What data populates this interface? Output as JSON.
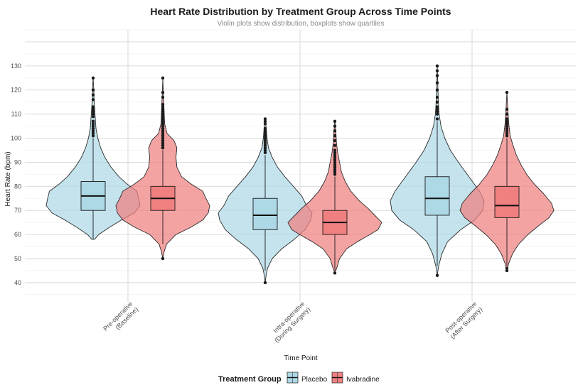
{
  "chart_data": {
    "type": "violin",
    "title": "Heart Rate Distribution by Treatment Group Across Time Points",
    "subtitle": "Violin plots show distribution, boxplots show quartiles",
    "xlabel": "Time Point",
    "ylabel": "Heart Rate (bpm)",
    "ylim": [
      32,
      145
    ],
    "y_ticks": [
      40,
      50,
      60,
      70,
      80,
      90,
      100,
      110,
      120,
      130
    ],
    "categories": [
      [
        "Pre-operative",
        "(Baseline)"
      ],
      [
        "Intra-operative",
        "(During Surgery)"
      ],
      [
        "Post-operative",
        "(After Surgery)"
      ]
    ],
    "legend": {
      "title": "Treatment Group",
      "position": "bottom",
      "entries": [
        {
          "label": "Placebo",
          "color": "#add8e6"
        },
        {
          "label": "Ivabradine",
          "color": "#f08080"
        }
      ]
    },
    "series": [
      {
        "name": "Placebo",
        "color": "#add8e6",
        "groups": [
          {
            "category": "Pre-operative",
            "box": {
              "min": 58,
              "q1": 70,
              "median": 76,
              "q3": 82,
              "max": 100
            },
            "outliers": [
              101,
              102,
              103,
              104,
              105,
              106,
              107,
              109,
              110,
              111,
              112,
              113,
              116,
              118,
              120,
              125
            ],
            "density": [
              [
                58,
                0.03
              ],
              [
                60,
                0.12
              ],
              [
                63,
                0.35
              ],
              [
                66,
                0.6
              ],
              [
                69,
                0.88
              ],
              [
                72,
                1.0
              ],
              [
                75,
                0.97
              ],
              [
                78,
                0.93
              ],
              [
                81,
                0.72
              ],
              [
                84,
                0.55
              ],
              [
                88,
                0.38
              ],
              [
                92,
                0.25
              ],
              [
                96,
                0.16
              ],
              [
                100,
                0.1
              ],
              [
                104,
                0.06
              ],
              [
                110,
                0.04
              ],
              [
                116,
                0.02
              ],
              [
                120,
                0.015
              ],
              [
                125,
                0.0
              ]
            ]
          },
          {
            "category": "Intra-operative",
            "box": {
              "min": 45,
              "q1": 62,
              "median": 68,
              "q3": 75,
              "max": 93
            },
            "outliers": [
              40,
              94,
              95,
              96,
              97,
              98,
              99,
              100,
              101,
              102,
              103,
              104,
              106,
              107,
              108
            ],
            "density": [
              [
                40,
                0.0
              ],
              [
                43,
                0.02
              ],
              [
                46,
                0.05
              ],
              [
                50,
                0.15
              ],
              [
                54,
                0.35
              ],
              [
                58,
                0.62
              ],
              [
                62,
                0.85
              ],
              [
                66,
                0.97
              ],
              [
                69,
                1.0
              ],
              [
                72,
                0.88
              ],
              [
                76,
                0.78
              ],
              [
                80,
                0.6
              ],
              [
                84,
                0.42
              ],
              [
                88,
                0.26
              ],
              [
                92,
                0.15
              ],
              [
                96,
                0.07
              ],
              [
                100,
                0.04
              ],
              [
                104,
                0.025
              ],
              [
                108,
                0.0
              ]
            ]
          },
          {
            "category": "Post-operative",
            "box": {
              "min": 47,
              "q1": 68,
              "median": 75,
              "q3": 84,
              "max": 107
            },
            "outliers": [
              43,
              108,
              110,
              111,
              112,
              113,
              115,
              117,
              120,
              123,
              126,
              128,
              130
            ],
            "density": [
              [
                43,
                0.0
              ],
              [
                47,
                0.03
              ],
              [
                52,
                0.1
              ],
              [
                57,
                0.22
              ],
              [
                62,
                0.5
              ],
              [
                66,
                0.8
              ],
              [
                70,
                0.97
              ],
              [
                74,
                1.0
              ],
              [
                78,
                0.9
              ],
              [
                82,
                0.75
              ],
              [
                86,
                0.6
              ],
              [
                90,
                0.45
              ],
              [
                95,
                0.28
              ],
              [
                100,
                0.16
              ],
              [
                105,
                0.08
              ],
              [
                110,
                0.04
              ],
              [
                115,
                0.025
              ],
              [
                122,
                0.012
              ],
              [
                130,
                0.0
              ]
            ]
          }
        ]
      },
      {
        "name": "Ivabradine",
        "color": "#f08080",
        "groups": [
          {
            "category": "Pre-operative",
            "box": {
              "min": 56,
              "q1": 70,
              "median": 75,
              "q3": 80,
              "max": 95
            },
            "outliers": [
              50,
              96,
              97,
              98,
              99,
              100,
              101,
              102,
              103,
              104,
              105,
              106,
              107,
              108,
              109,
              110,
              111,
              112,
              113,
              114,
              117,
              119,
              125
            ],
            "density": [
              [
                50,
                0.0
              ],
              [
                53,
                0.03
              ],
              [
                56,
                0.08
              ],
              [
                60,
                0.28
              ],
              [
                63,
                0.6
              ],
              [
                66,
                0.85
              ],
              [
                69,
                0.97
              ],
              [
                72,
                1.0
              ],
              [
                75,
                0.92
              ],
              [
                78,
                0.85
              ],
              [
                81,
                0.6
              ],
              [
                84,
                0.4
              ],
              [
                88,
                0.3
              ],
              [
                92,
                0.28
              ],
              [
                96,
                0.3
              ],
              [
                99,
                0.24
              ],
              [
                102,
                0.09
              ],
              [
                106,
                0.04
              ],
              [
                112,
                0.025
              ],
              [
                118,
                0.012
              ],
              [
                125,
                0.0
              ]
            ]
          },
          {
            "category": "Intra-operative",
            "box": {
              "min": 45,
              "q1": 60,
              "median": 65,
              "q3": 70,
              "max": 84
            },
            "outliers": [
              44,
              85,
              86,
              87,
              88,
              89,
              90,
              91,
              92,
              93,
              94,
              95,
              97,
              99,
              101,
              103,
              105,
              107
            ],
            "density": [
              [
                44,
                0.0
              ],
              [
                46,
                0.04
              ],
              [
                50,
                0.1
              ],
              [
                54,
                0.25
              ],
              [
                57,
                0.48
              ],
              [
                60,
                0.75
              ],
              [
                62,
                0.92
              ],
              [
                65,
                1.0
              ],
              [
                68,
                0.85
              ],
              [
                71,
                0.7
              ],
              [
                74,
                0.52
              ],
              [
                78,
                0.34
              ],
              [
                82,
                0.22
              ],
              [
                86,
                0.14
              ],
              [
                90,
                0.1
              ],
              [
                94,
                0.06
              ],
              [
                98,
                0.035
              ],
              [
                103,
                0.02
              ],
              [
                107,
                0.0
              ]
            ]
          },
          {
            "category": "Post-operative",
            "box": {
              "min": 47,
              "q1": 67,
              "median": 72,
              "q3": 80,
              "max": 100
            },
            "outliers": [
              45,
              46,
              101,
              102,
              103,
              104,
              105,
              106,
              107,
              108,
              110,
              112,
              119
            ],
            "density": [
              [
                45,
                0.0
              ],
              [
                48,
                0.04
              ],
              [
                52,
                0.12
              ],
              [
                56,
                0.25
              ],
              [
                60,
                0.45
              ],
              [
                64,
                0.7
              ],
              [
                67,
                0.9
              ],
              [
                70,
                1.0
              ],
              [
                73,
                0.95
              ],
              [
                77,
                0.78
              ],
              [
                81,
                0.58
              ],
              [
                85,
                0.42
              ],
              [
                89,
                0.3
              ],
              [
                93,
                0.2
              ],
              [
                97,
                0.13
              ],
              [
                101,
                0.07
              ],
              [
                106,
                0.04
              ],
              [
                112,
                0.02
              ],
              [
                119,
                0.0
              ]
            ]
          }
        ]
      }
    ]
  }
}
